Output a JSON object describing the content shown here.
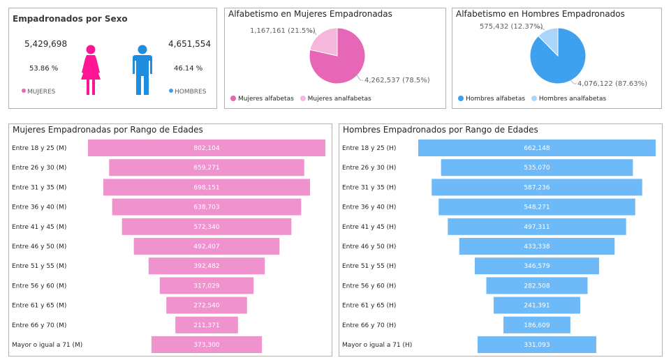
{
  "colors": {
    "women": "#e667b5",
    "women_light": "#f5b8dc",
    "women_funnel": "#ef92cd",
    "women_icon": "#ff1493",
    "men": "#3ea1f0",
    "men_light": "#a9d5fb",
    "men_funnel": "#6eb9f8",
    "men_icon": "#1e8de0"
  },
  "sexo": {
    "title": "Empadronados por Sexo",
    "women_count": "5,429,698",
    "women_pct": "53.86 %",
    "women_label": "MUJERES",
    "men_count": "4,651,554",
    "men_pct": "46.14 %",
    "men_label": "HOMBRES",
    "women_icon": "woman-icon",
    "men_icon": "man-icon"
  },
  "chart_data": [
    {
      "type": "pie",
      "title": "Alfabetismo en Mujeres Empadronadas",
      "categories": [
        "Mujeres alfabetas",
        "Mujeres analfabetas"
      ],
      "values": [
        4262537,
        1167161
      ],
      "data_labels": [
        "4,262,537 (78.5%)",
        "1,167,161 (21.5%)"
      ],
      "legend": "bottom-left"
    },
    {
      "type": "pie",
      "title": "Alfabetismo en Hombres Empadronados",
      "categories": [
        "Hombres alfabetas",
        "Hombres analfabetas"
      ],
      "values": [
        4076122,
        575432
      ],
      "data_labels": [
        "4,076,122 (87.63%)",
        "575,432 (12.37%)"
      ],
      "legend": "bottom-left"
    },
    {
      "type": "bar",
      "title": "Mujeres Empadronadas por Rango de Edades",
      "categories": [
        "Entre 18 y 25 (M)",
        "Entre 26 y 30 (M)",
        "Entre 31 y 35 (M)",
        "Entre 36 y 40 (M)",
        "Entre 41 y 45 (M)",
        "Entre 46 y 50 (M)",
        "Entre 51 y 55 (M)",
        "Entre 56 y 60 (M)",
        "Entre 61 y 65 (M)",
        "Entre 66 y 70 (M)",
        "Mayor o igual a 71 (M)"
      ],
      "values": [
        802104,
        659271,
        698151,
        638703,
        572340,
        492407,
        392482,
        317029,
        272540,
        211371,
        373300
      ],
      "data_labels": [
        "802,104",
        "659,271",
        "698,151",
        "638,703",
        "572,340",
        "492,407",
        "392,482",
        "317,029",
        "272,540",
        "211,371",
        "373,300"
      ]
    },
    {
      "type": "bar",
      "title": "Hombres Empadronados por Rango de Edades",
      "categories": [
        "Entre 18 y 25 (H)",
        "Entre 26 y 30 (H)",
        "Entre 31 y 35 (H)",
        "Entre 36 y 40 (H)",
        "Entre 41 y 45 (H)",
        "Entre 46 y 50 (H)",
        "Entre 51 y 55 (H)",
        "Entre 56 y 60 (H)",
        "Entre 61 y 65 (H)",
        "Entre 66 y 70 (H)",
        "Mayor o igual a 71 (H)"
      ],
      "values": [
        662148,
        535070,
        587236,
        548271,
        497311,
        433338,
        346579,
        282508,
        241391,
        186609,
        331093
      ],
      "data_labels": [
        "662,148",
        "535,070",
        "587,236",
        "548,271",
        "497,311",
        "433,338",
        "346,579",
        "282,508",
        "241,391",
        "186,609",
        "331,093"
      ]
    }
  ]
}
